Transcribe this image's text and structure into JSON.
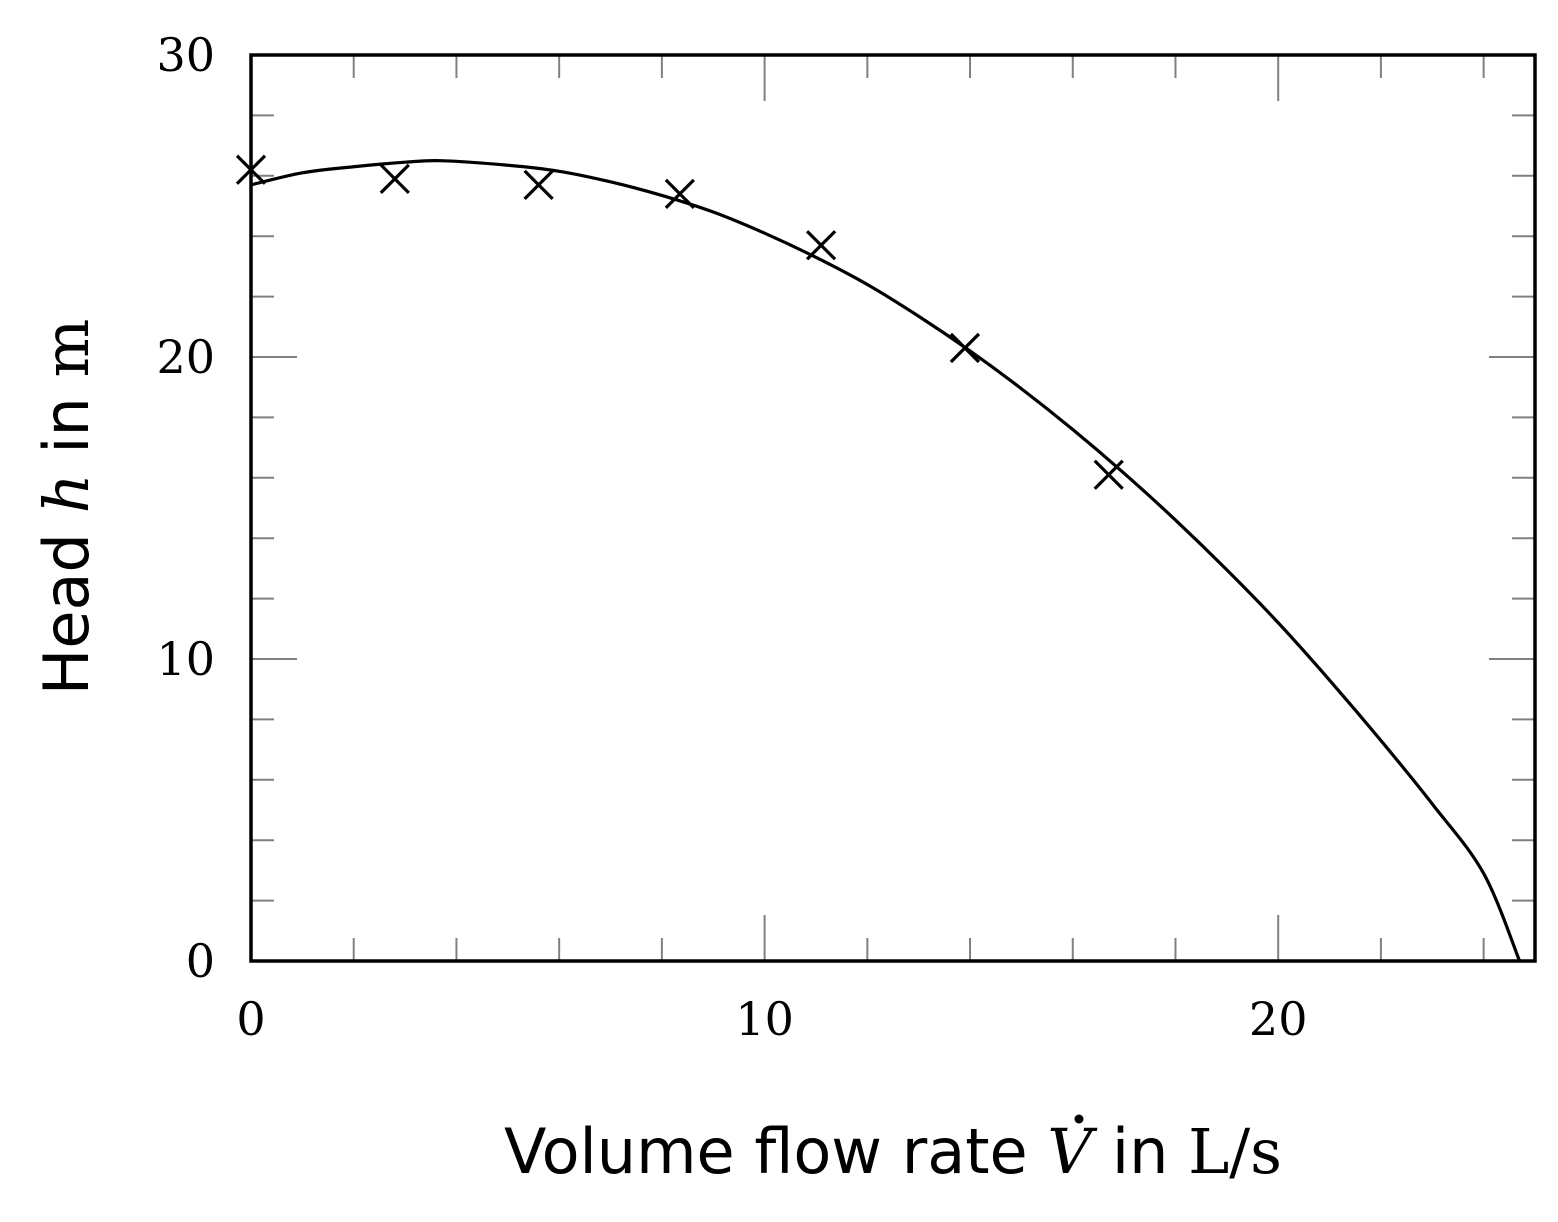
{
  "chart_data": {
    "type": "scatter",
    "xlabel": {
      "prefix": "Volume flow rate ",
      "symbol": "V",
      "middle": " in ",
      "unit": "L/s"
    },
    "ylabel": {
      "prefix": "Head ",
      "symbol": "h",
      "middle": " in ",
      "unit": "m"
    },
    "xlim": [
      0,
      25
    ],
    "ylim": [
      0,
      30
    ],
    "x_ticks": [
      0,
      10,
      20
    ],
    "x_tick_labels": [
      "0",
      "10",
      "20"
    ],
    "x_minor_step": 2,
    "y_ticks": [
      0,
      10,
      20,
      30
    ],
    "y_tick_labels": [
      "0",
      "10",
      "20",
      "30"
    ],
    "y_minor_step": 2,
    "grid": false,
    "series": [
      {
        "kind": "markers",
        "marker": "x",
        "x": [
          0,
          2.8,
          5.6,
          8.35,
          11.1,
          13.9,
          16.7
        ],
        "y": [
          26.2,
          25.9,
          25.7,
          25.4,
          23.7,
          20.3,
          16.1
        ]
      },
      {
        "kind": "line",
        "x": [
          0,
          1,
          2,
          3,
          3.7,
          5,
          6,
          7,
          8,
          9,
          10,
          11,
          12,
          13,
          14,
          15,
          16,
          17,
          18,
          19,
          20,
          21,
          22,
          23,
          24,
          24.7
        ],
        "y": [
          25.7,
          26.1,
          26.3,
          26.45,
          26.5,
          26.35,
          26.15,
          25.8,
          25.35,
          24.8,
          24.1,
          23.3,
          22.4,
          21.35,
          20.2,
          18.95,
          17.6,
          16.15,
          14.6,
          12.95,
          11.2,
          9.3,
          7.3,
          5.2,
          2.9,
          0
        ]
      }
    ],
    "colors": {
      "line": "#000000",
      "markers": "#000000",
      "ticks": "#808080",
      "frame": "#000000"
    }
  }
}
